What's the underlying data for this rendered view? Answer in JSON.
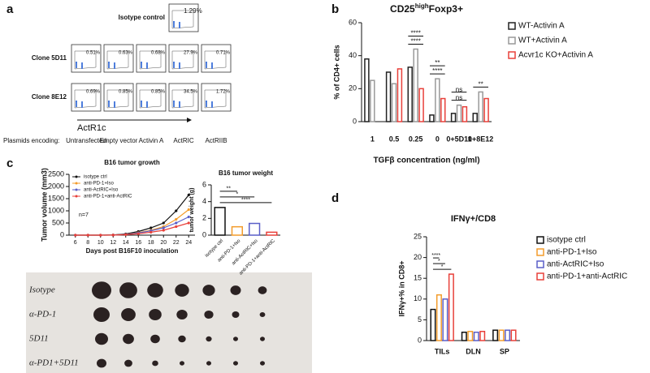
{
  "panel_labels": [
    "a",
    "b",
    "c",
    "d"
  ],
  "flow": {
    "isotype_label": "Isotype control",
    "isotype_pct": "1.29%",
    "rows": [
      {
        "label": "Clone 5D11",
        "pcts": [
          "0.51%",
          "0.63%",
          "0.68%",
          "27.9%",
          "0.71%"
        ]
      },
      {
        "label": "Clone 8E12",
        "pcts": [
          "0.69%",
          "0.85%",
          "0.85%",
          "34.5%",
          "1.72%"
        ]
      }
    ],
    "arrow_label": "ActR1c",
    "plasmids": "Plasmids encoding:",
    "columns": [
      "Untransfected",
      "Empty vector",
      "Activin A",
      "ActRIC",
      "ActRIIB"
    ]
  },
  "chart_data": [
    {
      "type": "bar",
      "title": {
        "text": "CD25",
        "sup": "high",
        "rest": "Foxp3+"
      },
      "y_label": "% of CD4+ cells",
      "x_label": "TGFβ concentration (ng/ml)",
      "categories": [
        "1",
        "0.5",
        "0.25",
        "0",
        "0+5D11",
        "0+8E12"
      ],
      "series": [
        {
          "name": "WT-Activin A",
          "color": "#222222",
          "values": [
            38,
            30,
            33,
            4,
            5,
            5
          ]
        },
        {
          "name": "WT+Activin A",
          "color": "#999999",
          "values": [
            25,
            23,
            44,
            26,
            10,
            18
          ]
        },
        {
          "name": "Acvr1c KO+Activin A",
          "color": "#e8403a",
          "values": [
            null,
            32,
            20,
            14,
            9,
            14
          ]
        }
      ],
      "ylim": [
        0,
        60
      ],
      "yticks": [
        0,
        20,
        40,
        60
      ],
      "bar_style": "outline",
      "legend": "right",
      "significance": [
        [],
        [],
        [
          "****",
          "****"
        ],
        [
          "****",
          "**"
        ],
        [
          "ns",
          "ns"
        ],
        [
          "**"
        ]
      ]
    },
    {
      "type": "line",
      "title": "B16 tumor growth",
      "y_label": "Tumor volume (mm3)",
      "x_label": "Days post B16F10 inoculation",
      "annotation": "n=7",
      "x": [
        6,
        8,
        10,
        12,
        14,
        16,
        18,
        20,
        22,
        24
      ],
      "series": [
        {
          "name": "isotype ctrl",
          "color": "#111111",
          "values": [
            0,
            0,
            0,
            10,
            50,
            150,
            300,
            500,
            1000,
            1650
          ]
        },
        {
          "name": "anti-PD-1+Iso",
          "color": "#f39c2b",
          "values": [
            0,
            0,
            0,
            5,
            30,
            100,
            200,
            350,
            650,
            1050
          ]
        },
        {
          "name": "anti-ActRIC+Iso",
          "color": "#5a5fc8",
          "values": [
            0,
            0,
            0,
            5,
            30,
            90,
            180,
            300,
            500,
            750
          ]
        },
        {
          "name": "anti-PD-1+anti-ActRIC",
          "color": "#e8403a",
          "values": [
            0,
            0,
            0,
            5,
            20,
            60,
            120,
            200,
            350,
            500
          ]
        }
      ],
      "xlim": [
        5,
        25
      ],
      "xticks": [
        6,
        8,
        10,
        12,
        14,
        16,
        18,
        20,
        22,
        24
      ],
      "ylim": [
        0,
        2500
      ],
      "yticks": [
        0,
        500,
        1000,
        1500,
        2000,
        2500
      ],
      "legend": "upper left"
    },
    {
      "type": "bar",
      "title": "B16 tumor weight",
      "y_label": "tumor weight (g)",
      "categories": [
        "isotype ctrl",
        "anti-PD-1+Iso",
        "anti-ActRIC+Iso",
        "anti-PD-1+anti-ActRIC"
      ],
      "values": [
        3.3,
        1.0,
        1.4,
        0.35
      ],
      "colors": [
        "#111111",
        "#f39c2b",
        "#5a5fc8",
        "#e8403a"
      ],
      "ylim": [
        0,
        6
      ],
      "yticks": [
        0,
        2,
        4,
        6
      ],
      "bar_style": "outline",
      "significance_vs_first": [
        "**",
        "*",
        "****"
      ]
    },
    {
      "type": "bar",
      "title": "IFNγ+/CD8",
      "y_label": "IFNγ+% in CD8+",
      "categories": [
        "TILs",
        "DLN",
        "SP"
      ],
      "series": [
        {
          "name": "isotype ctrl",
          "color": "#111111",
          "values": [
            7.5,
            2,
            2.5
          ]
        },
        {
          "name": "anti-PD-1+Iso",
          "color": "#f39c2b",
          "values": [
            11,
            2.2,
            2.5
          ]
        },
        {
          "name": "anti-ActRIC+Iso",
          "color": "#5a5fc8",
          "values": [
            10,
            2,
            2.5
          ]
        },
        {
          "name": "anti-PD-1+anti-ActRIC",
          "color": "#e8403a",
          "values": [
            16,
            2.2,
            2.5
          ]
        }
      ],
      "ylim": [
        0,
        25
      ],
      "yticks": [
        0,
        5,
        10,
        15,
        20,
        25
      ],
      "bar_style": "outline",
      "legend": "right",
      "significance_vs_first": [
        "****",
        "*",
        "*"
      ]
    }
  ],
  "photo": {
    "rows": [
      "Isotype",
      "α-PD-1",
      "5D11",
      "α-PD1+5D11"
    ]
  }
}
